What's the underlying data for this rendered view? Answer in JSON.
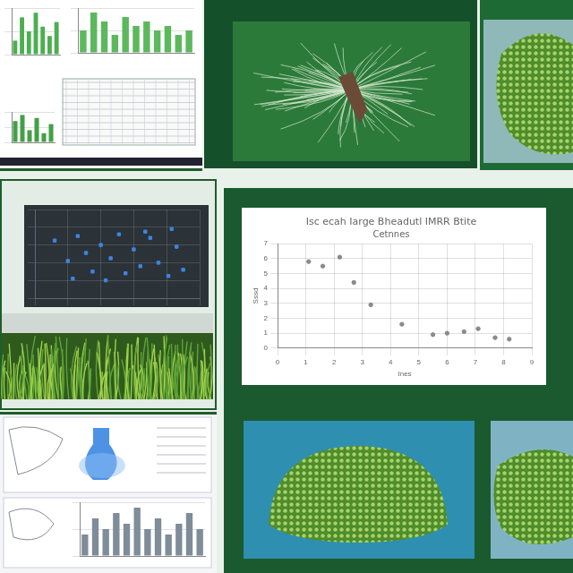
{
  "chart_data": [
    {
      "type": "scatter",
      "title": "Isc ecah Iarge Bheadutl IMRR Btite",
      "subtitle": "Cetnnes",
      "x_label": "Ines",
      "y_label": "Sssd",
      "x": [
        1.1,
        1.6,
        2.2,
        2.7,
        3.3,
        4.4,
        5.5,
        6.0,
        6.6,
        7.1,
        7.7,
        8.2
      ],
      "values": [
        5.8,
        5.5,
        6.1,
        4.4,
        2.9,
        1.6,
        0.9,
        1.0,
        1.1,
        1.3,
        0.7,
        0.6
      ],
      "color": "#8a8a8a",
      "marker": "circle",
      "xlim": [
        0,
        9
      ],
      "xticks": [
        0,
        1,
        2,
        3,
        4,
        5,
        6,
        7,
        8,
        9
      ],
      "ylim": [
        0,
        7
      ],
      "yticks": [
        0,
        1,
        2,
        3,
        4,
        5,
        6,
        7
      ],
      "grid": true
    },
    {
      "type": "scatter",
      "x": [
        1.2,
        2.0,
        2.6,
        3.1,
        3.5,
        4.0,
        4.6,
        5.1,
        5.5,
        6.0,
        6.4,
        7.0,
        7.5,
        8.1,
        8.6,
        9.0,
        2.3,
        4.3,
        6.7,
        8.3
      ],
      "values": [
        6.5,
        4.2,
        7.0,
        5.1,
        3.0,
        6.0,
        4.5,
        7.2,
        2.8,
        5.5,
        3.6,
        6.8,
        4.0,
        2.5,
        5.8,
        3.2,
        2.2,
        2.0,
        7.5,
        7.8
      ],
      "color": "#3d86e0",
      "marker": "rect",
      "xlim": [
        0,
        10
      ],
      "xticks": [
        0,
        2,
        4,
        6,
        8,
        10
      ],
      "ylim": [
        0,
        10
      ],
      "yticks": [
        0,
        2,
        4,
        6,
        8,
        10
      ],
      "grid": true,
      "tick_labels": false
    },
    {
      "type": "bar",
      "categories": [
        null,
        null,
        null,
        null,
        null,
        null,
        null
      ],
      "values": [
        3,
        8,
        5,
        9,
        6,
        4,
        7
      ],
      "color": "#4caf50",
      "ylim": [
        0,
        10
      ],
      "yticks": [
        0,
        5,
        10
      ],
      "grid": true,
      "tick_labels": false
    },
    {
      "type": "bar",
      "categories": [
        null,
        null,
        null,
        null,
        null,
        null,
        null,
        null,
        null,
        null,
        null
      ],
      "values": [
        5,
        9,
        7,
        4,
        8,
        6,
        7,
        5,
        6,
        4,
        5
      ],
      "color": "#5cb85c",
      "ylim": [
        0,
        10
      ],
      "yticks": [
        0,
        5,
        10
      ],
      "grid": true,
      "tick_labels": false
    },
    {
      "type": "bar",
      "categories": [
        null,
        null,
        null,
        null,
        null,
        null
      ],
      "values": [
        7,
        9,
        4,
        8,
        3,
        6
      ],
      "color": "#43a047",
      "ylim": [
        0,
        10
      ],
      "yticks": [
        0,
        5,
        10
      ],
      "grid": true,
      "tick_labels": false
    },
    {
      "type": "bar",
      "categories": [
        null,
        null,
        null,
        null,
        null,
        null,
        null,
        null,
        null,
        null,
        null,
        null
      ],
      "values": [
        4,
        7,
        5,
        8,
        6,
        9,
        5,
        7,
        4,
        6,
        8,
        5
      ],
      "color": "#7f8c99",
      "ylim": [
        0,
        10
      ],
      "yticks": [
        0,
        5,
        10
      ],
      "grid": true,
      "tick_labels": false
    }
  ]
}
